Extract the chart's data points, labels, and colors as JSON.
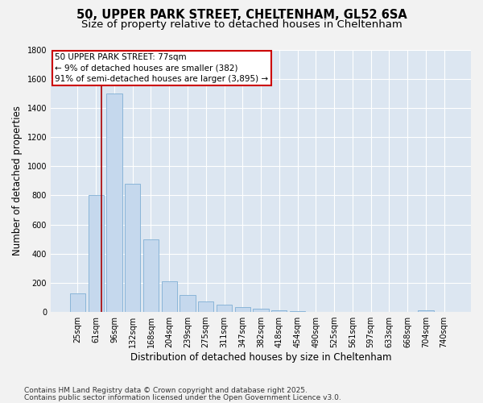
{
  "title_line1": "50, UPPER PARK STREET, CHELTENHAM, GL52 6SA",
  "title_line2": "Size of property relative to detached houses in Cheltenham",
  "xlabel": "Distribution of detached houses by size in Cheltenham",
  "ylabel": "Number of detached properties",
  "bins": [
    "25sqm",
    "61sqm",
    "96sqm",
    "132sqm",
    "168sqm",
    "204sqm",
    "239sqm",
    "275sqm",
    "311sqm",
    "347sqm",
    "382sqm",
    "418sqm",
    "454sqm",
    "490sqm",
    "525sqm",
    "561sqm",
    "597sqm",
    "633sqm",
    "668sqm",
    "704sqm",
    "740sqm"
  ],
  "values": [
    125,
    800,
    1500,
    880,
    500,
    210,
    115,
    70,
    50,
    35,
    25,
    10,
    5,
    0,
    0,
    0,
    0,
    0,
    0,
    12,
    0
  ],
  "bar_color": "#c5d8ed",
  "bar_edge_color": "#7fafd4",
  "vline_x": 1.3,
  "vline_color": "#aa0000",
  "annotation_line1": "50 UPPER PARK STREET: 77sqm",
  "annotation_line2": "← 9% of detached houses are smaller (382)",
  "annotation_line3": "91% of semi-detached houses are larger (3,895) →",
  "annotation_box_color": "#ffffff",
  "annotation_box_edge": "#cc0000",
  "ylim": [
    0,
    1800
  ],
  "yticks": [
    0,
    200,
    400,
    600,
    800,
    1000,
    1200,
    1400,
    1600,
    1800
  ],
  "fig_bg_color": "#f2f2f2",
  "plot_bg_color": "#dce6f1",
  "grid_color": "#ffffff",
  "footer_line1": "Contains HM Land Registry data © Crown copyright and database right 2025.",
  "footer_line2": "Contains public sector information licensed under the Open Government Licence v3.0.",
  "title_fontsize": 10.5,
  "subtitle_fontsize": 9.5,
  "axis_label_fontsize": 8.5,
  "tick_fontsize": 7,
  "annotation_fontsize": 7.5,
  "footer_fontsize": 6.5
}
